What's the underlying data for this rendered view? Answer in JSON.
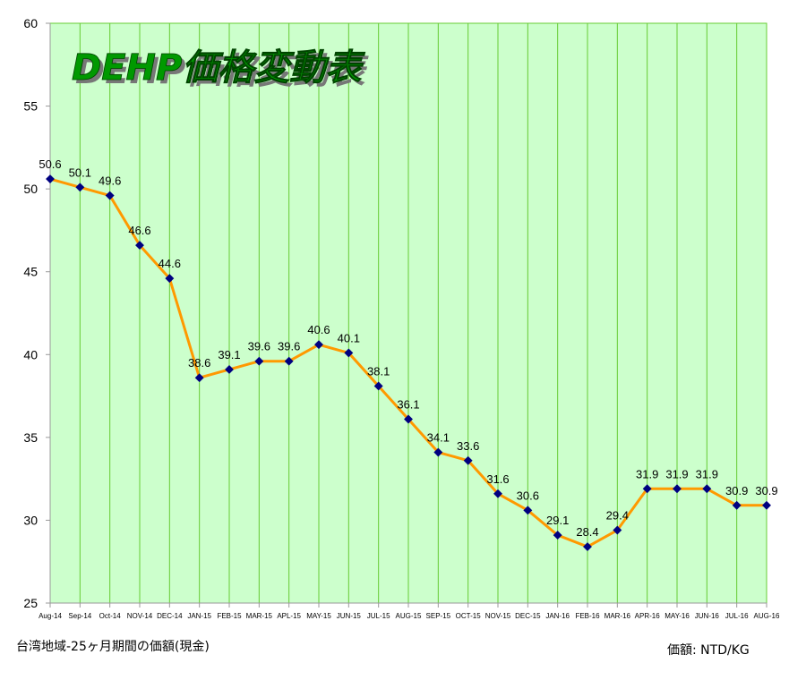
{
  "chart_data": {
    "type": "line",
    "title": "DEHP価格変動表",
    "categories": [
      "Aug-14",
      "Sep-14",
      "Oct-14",
      "NOV-14",
      "DEC-14",
      "JAN-15",
      "FEB-15",
      "MAR-15",
      "APL-15",
      "MAY-15",
      "JUN-15",
      "JUL-15",
      "AUG-15",
      "SEP-15",
      "OCT-15",
      "NOV-15",
      "DEC-15",
      "JAN-16",
      "FEB-16",
      "MAR-16",
      "APR-16",
      "MAY-16",
      "JUN-16",
      "JUL-16",
      "AUG-16"
    ],
    "series": [
      {
        "values": [
          50.6,
          50.1,
          49.6,
          46.6,
          44.6,
          38.6,
          39.1,
          39.6,
          39.6,
          40.6,
          40.1,
          38.1,
          36.1,
          34.1,
          33.6,
          31.6,
          30.6,
          29.1,
          28.4,
          29.4,
          31.9,
          31.9,
          31.9,
          30.9,
          30.9
        ],
        "labels": [
          "50.6",
          "50.1",
          "49.6",
          "46.6",
          "44.6",
          "38.6",
          "39.1",
          "39.6",
          "39.6",
          "40.6",
          "40.1",
          "38.1",
          "36.1",
          "34.1",
          "33.6",
          "31.6",
          "30.6",
          "29.1",
          "28.4",
          "29.4",
          "31.9",
          "31.9",
          "31.9",
          "30.9",
          "30.9"
        ]
      }
    ],
    "ylim": [
      25,
      60
    ],
    "yticks": [
      25,
      30,
      35,
      40,
      45,
      50,
      55,
      60
    ],
    "ytick_labels": [
      "25",
      "30",
      "35",
      "40",
      "45",
      "50",
      "55",
      "60"
    ],
    "grid": "vertical",
    "legend": "none"
  },
  "colors": {
    "plot_bg": "#ccffcc",
    "grid": "#66cc33",
    "line": "#ff9900",
    "marker": "#000080",
    "title_fill": "#009900",
    "title_shadow": "#777777"
  },
  "footer": {
    "left_note": "台湾地域-25ヶ月期間の価額(現金)",
    "right_note": "価額: NTD/KG"
  }
}
